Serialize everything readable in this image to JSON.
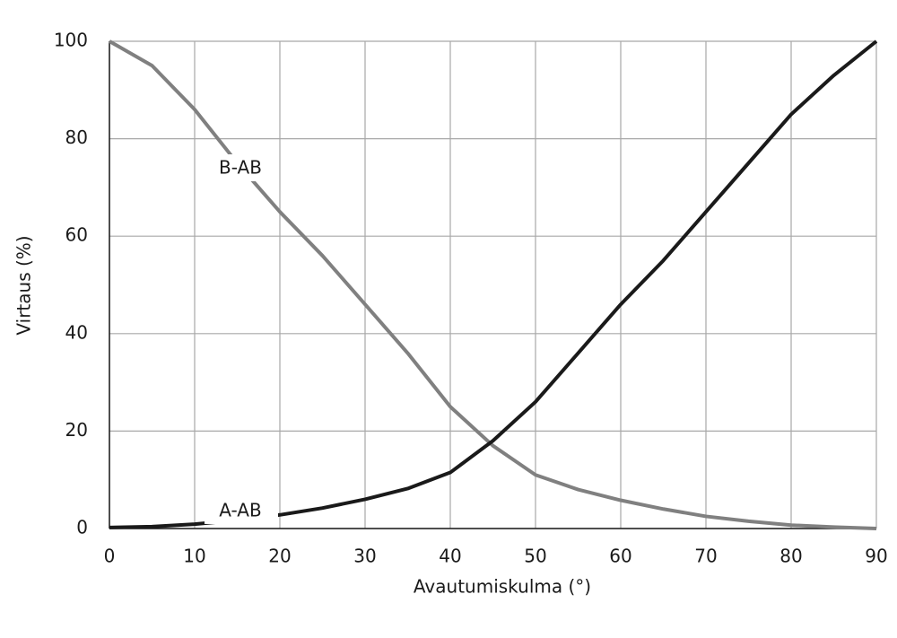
{
  "chart_data": {
    "type": "line",
    "x_label": "Avautumiskulma (°)",
    "y_label": "Virtaus (%)",
    "x": [
      0,
      5,
      10,
      15,
      20,
      25,
      30,
      35,
      40,
      45,
      50,
      55,
      60,
      65,
      70,
      75,
      80,
      85,
      90
    ],
    "series": [
      {
        "name": "B-AB",
        "color": "#808080",
        "values": [
          100,
          95,
          86,
          75,
          65,
          56,
          46,
          36,
          25,
          17,
          11,
          8,
          5.8,
          4,
          2.5,
          1.5,
          0.7,
          0.3,
          0
        ]
      },
      {
        "name": "A-AB",
        "color": "#1a1a1a",
        "values": [
          0.2,
          0.4,
          0.9,
          1.7,
          2.8,
          4.2,
          6,
          8.2,
          11.5,
          18,
          26,
          36,
          46,
          55,
          65,
          75,
          85,
          93,
          100
        ]
      }
    ],
    "xlim": [
      0,
      90
    ],
    "xticks": [
      0,
      10,
      20,
      30,
      40,
      50,
      60,
      70,
      80,
      90
    ],
    "ylim": [
      0,
      100
    ],
    "yticks": [
      0,
      20,
      40,
      60,
      80,
      100
    ],
    "grid": true
  }
}
